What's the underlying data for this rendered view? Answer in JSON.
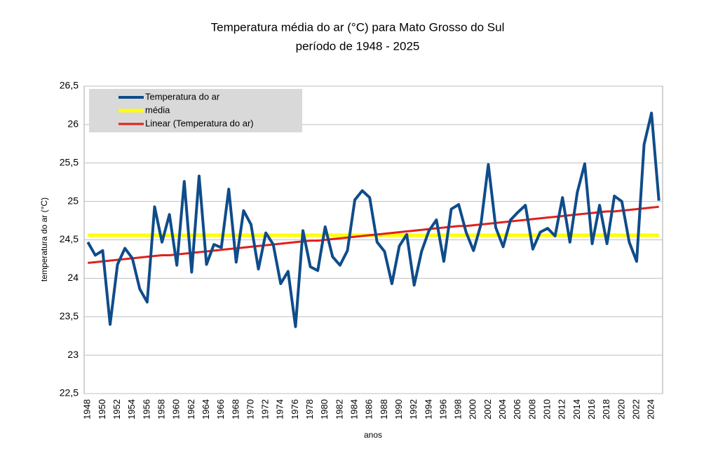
{
  "chart_data": {
    "type": "line",
    "title": "Temperatura média do ar (°C) para Mato Grosso do Sul",
    "subtitle": "período de 1948 - 2025",
    "y_label": "temperatura do ar (°C)",
    "x_label": "anos",
    "categories": [
      "1948",
      null,
      "1950",
      null,
      "1952",
      null,
      "1954",
      null,
      "1956",
      null,
      "1958",
      null,
      "1960",
      null,
      "1962",
      null,
      "1964",
      null,
      "1966",
      null,
      "1968",
      null,
      "1970",
      null,
      "1972",
      null,
      "1974",
      null,
      "1976",
      null,
      "1978",
      null,
      "1980",
      null,
      "1982",
      null,
      "1984",
      null,
      "1986",
      null,
      "1988",
      null,
      "1990",
      null,
      "1992",
      null,
      "1994",
      null,
      "1996",
      null,
      "1998",
      null,
      "2000",
      null,
      "2002",
      null,
      "2004",
      null,
      "2006",
      null,
      "2008",
      null,
      "2010",
      null,
      "2012",
      null,
      "2014",
      null,
      "2016",
      null,
      "2018",
      null,
      "2020",
      null,
      "2022",
      null,
      "2024",
      null
    ],
    "series": [
      {
        "name": "Temperatura do ar",
        "color": "#0f4c8a",
        "width": 4,
        "values": [
          24.47,
          24.3,
          24.36,
          23.4,
          24.18,
          24.39,
          24.26,
          23.86,
          23.69,
          24.93,
          24.47,
          24.83,
          24.17,
          25.26,
          24.08,
          25.33,
          24.18,
          24.44,
          24.4,
          25.16,
          24.21,
          24.88,
          24.7,
          24.12,
          24.59,
          24.44,
          23.93,
          24.09,
          23.37,
          24.62,
          24.15,
          24.1,
          24.67,
          24.28,
          24.17,
          24.36,
          25.02,
          25.14,
          25.05,
          24.47,
          24.35,
          23.93,
          24.42,
          24.57,
          23.91,
          24.35,
          24.62,
          24.76,
          24.22,
          24.9,
          24.96,
          24.6,
          24.36,
          24.7,
          25.48,
          24.66,
          24.41,
          24.76,
          24.86,
          24.95,
          24.38,
          24.6,
          24.65,
          24.55,
          25.05,
          24.47,
          25.12,
          25.49,
          24.45,
          24.95,
          24.45,
          25.07,
          25.0,
          24.47,
          24.22,
          25.74,
          26.15,
          25.01
        ]
      },
      {
        "name": "média",
        "color": "#ffff00",
        "width": 5,
        "values": [
          24.56,
          24.56,
          24.56,
          24.56,
          24.56,
          24.56,
          24.56,
          24.56,
          24.56,
          24.56,
          24.56,
          24.56,
          24.56,
          24.56,
          24.56,
          24.56,
          24.56,
          24.56,
          24.56,
          24.56,
          24.56,
          24.56,
          24.56,
          24.56,
          24.56,
          24.56,
          24.56,
          24.56,
          24.56,
          24.56,
          24.56,
          24.56,
          24.56,
          24.56,
          24.56,
          24.56,
          24.56,
          24.56,
          24.56,
          24.56,
          24.56,
          24.56,
          24.56,
          24.56,
          24.56,
          24.56,
          24.56,
          24.56,
          24.56,
          24.56,
          24.56,
          24.56,
          24.56,
          24.56,
          24.56,
          24.56,
          24.56,
          24.56,
          24.56,
          24.56,
          24.56,
          24.56,
          24.56,
          24.56,
          24.56,
          24.56,
          24.56,
          24.56,
          24.56,
          24.56,
          24.56,
          24.56,
          24.56,
          24.56,
          24.56,
          24.56,
          24.56,
          24.56
        ]
      },
      {
        "name": "Linear (Temperatura do ar)",
        "color": "#e0201b",
        "width": 3,
        "values": [
          24.2,
          24.21,
          24.22,
          24.23,
          24.24,
          24.25,
          24.26,
          24.27,
          24.28,
          24.29,
          24.3,
          24.3,
          24.31,
          24.32,
          24.33,
          24.34,
          24.35,
          24.36,
          24.37,
          24.38,
          24.39,
          24.4,
          24.41,
          24.42,
          24.43,
          24.44,
          24.45,
          24.46,
          24.47,
          24.48,
          24.49,
          24.49,
          24.5,
          24.51,
          24.52,
          24.53,
          24.54,
          24.55,
          24.56,
          24.57,
          24.58,
          24.59,
          24.6,
          24.61,
          24.62,
          24.63,
          24.64,
          24.65,
          24.66,
          24.67,
          24.68,
          24.68,
          24.69,
          24.7,
          24.71,
          24.72,
          24.73,
          24.74,
          24.75,
          24.76,
          24.77,
          24.78,
          24.79,
          24.8,
          24.81,
          24.82,
          24.83,
          24.84,
          24.85,
          24.86,
          24.87,
          24.87,
          24.88,
          24.89,
          24.9,
          24.91,
          24.92,
          24.93
        ]
      }
    ],
    "ylim": [
      22.5,
      26.5
    ],
    "yticks": [
      {
        "value": 22.5,
        "label": "22,5"
      },
      23,
      {
        "value": 23.5,
        "label": "23,5"
      },
      24,
      {
        "value": 24.5,
        "label": "24,5"
      },
      25,
      {
        "value": 25.5,
        "label": "25,5"
      },
      26,
      {
        "value": 26.5,
        "label": "26,5"
      }
    ],
    "grid": true,
    "legend": "top-left"
  }
}
